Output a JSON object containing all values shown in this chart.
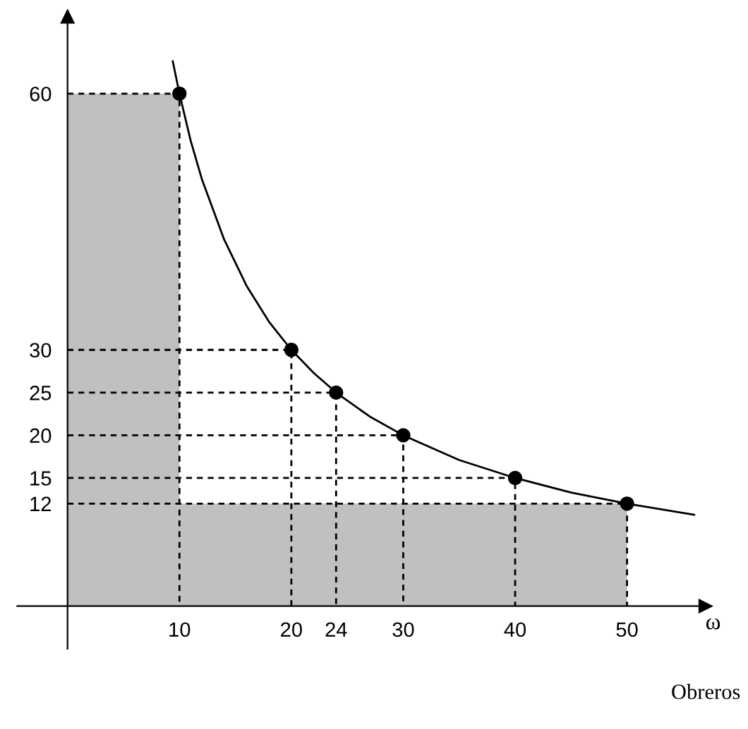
{
  "chart_data": {
    "type": "line",
    "xlabel": "ω",
    "annotations": [
      "Obreros"
    ],
    "xlim": [
      -4.5,
      57
    ],
    "ylim": [
      -5,
      69
    ],
    "xticks": [
      10,
      20,
      24,
      30,
      40,
      50
    ],
    "yticks": [
      12,
      15,
      20,
      25,
      30,
      60
    ],
    "grid": false,
    "legend": false,
    "series": [
      {
        "type": "area",
        "color": "#c0c0c0",
        "x": [
          0,
          10,
          10,
          50,
          50
        ],
        "values": [
          60,
          60,
          12,
          12,
          0
        ]
      },
      {
        "color": "#000000",
        "marker": "none",
        "line_style": "solid",
        "x": [
          9.4,
          10,
          11,
          12,
          14,
          16,
          18,
          20,
          22,
          24,
          27,
          30,
          35,
          40,
          45,
          50,
          56
        ],
        "values": [
          63.8,
          60,
          54.5,
          50,
          42.9,
          37.5,
          33.3,
          30,
          27.3,
          25,
          22.2,
          20,
          17.1,
          15,
          13.3,
          12,
          10.7
        ]
      },
      {
        "type": "scatter",
        "color": "#000000",
        "marker": "circle",
        "x": [
          10,
          20,
          24,
          30,
          40,
          50
        ],
        "values": [
          60,
          30,
          25,
          20,
          15,
          12
        ]
      },
      {
        "color": "#000000",
        "marker": "none",
        "line_style": "dashed",
        "x": [
          0,
          10,
          10
        ],
        "values": [
          60,
          60,
          0
        ]
      },
      {
        "color": "#000000",
        "marker": "none",
        "line_style": "dashed",
        "x": [
          0,
          20,
          20
        ],
        "values": [
          30,
          30,
          0
        ]
      },
      {
        "color": "#000000",
        "marker": "none",
        "line_style": "dashed",
        "x": [
          0,
          24,
          24
        ],
        "values": [
          25,
          25,
          0
        ]
      },
      {
        "color": "#000000",
        "marker": "none",
        "line_style": "dashed",
        "x": [
          0,
          30,
          30
        ],
        "values": [
          20,
          20,
          0
        ]
      },
      {
        "color": "#000000",
        "marker": "none",
        "line_style": "dashed",
        "x": [
          0,
          40,
          40
        ],
        "values": [
          15,
          15,
          0
        ]
      },
      {
        "color": "#000000",
        "marker": "none",
        "line_style": "dashed",
        "x": [
          0,
          50,
          50
        ],
        "values": [
          12,
          12,
          0
        ]
      }
    ]
  }
}
